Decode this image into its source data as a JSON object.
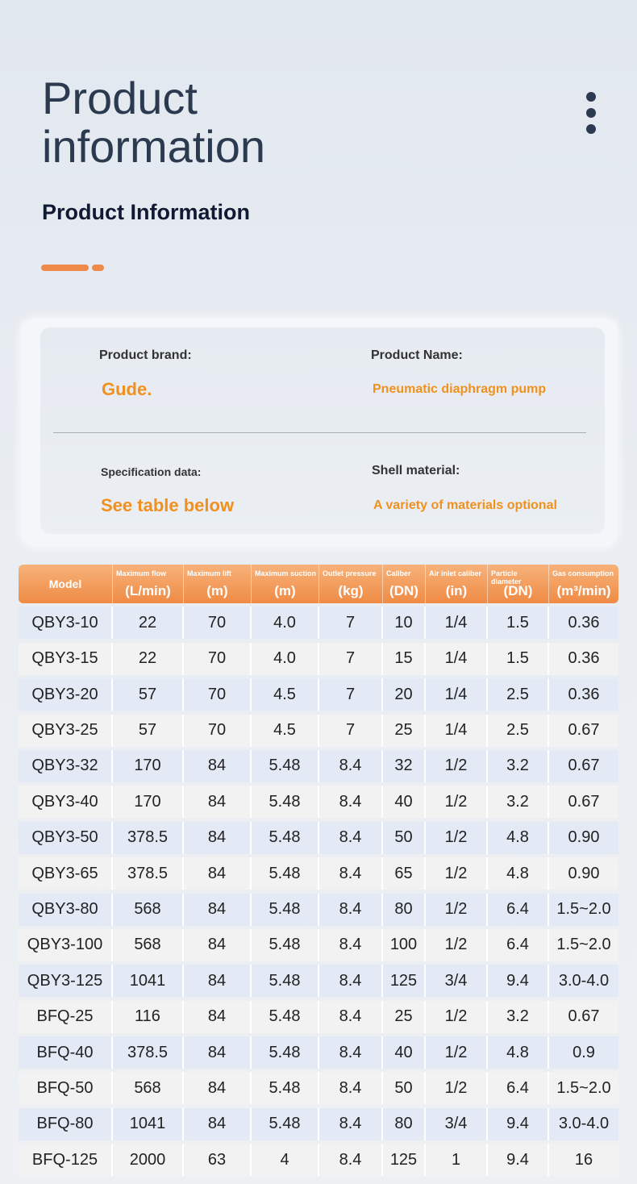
{
  "header": {
    "title_line1": "Product",
    "title_line2": "information",
    "subtitle": "Product Information"
  },
  "info": {
    "brand_label": "Product brand:",
    "brand": "Gude.",
    "name_label": "Product Name:",
    "name": "Pneumatic diaphragm pump",
    "spec_label": "Specification data:",
    "spec": "See table below",
    "shell_label": "Shell material:",
    "shell": "A variety of materials optional"
  },
  "table": {
    "columns": [
      {
        "label": "Model"
      },
      {
        "label": "Maximum flow",
        "unit": "(L/min)"
      },
      {
        "label": "Maximum lift",
        "unit": "(m)"
      },
      {
        "label": "Maximum suction",
        "unit": "(m)"
      },
      {
        "label": "Outlet pressure",
        "unit": "(kg)"
      },
      {
        "label": "Caliber",
        "unit": "(DN)"
      },
      {
        "label": "Air inlet caliber",
        "unit": "(in)"
      },
      {
        "label": "Particle diameter",
        "unit": "(DN)"
      },
      {
        "label": "Gas consumption",
        "unit": "(m³/min)"
      }
    ],
    "rows": [
      [
        "QBY3-10",
        "22",
        "70",
        "4.0",
        "7",
        "10",
        "1/4",
        "1.5",
        "0.36"
      ],
      [
        "QBY3-15",
        "22",
        "70",
        "4.0",
        "7",
        "15",
        "1/4",
        "1.5",
        "0.36"
      ],
      [
        "QBY3-20",
        "57",
        "70",
        "4.5",
        "7",
        "20",
        "1/4",
        "2.5",
        "0.36"
      ],
      [
        "QBY3-25",
        "57",
        "70",
        "4.5",
        "7",
        "25",
        "1/4",
        "2.5",
        "0.67"
      ],
      [
        "QBY3-32",
        "170",
        "84",
        "5.48",
        "8.4",
        "32",
        "1/2",
        "3.2",
        "0.67"
      ],
      [
        "QBY3-40",
        "170",
        "84",
        "5.48",
        "8.4",
        "40",
        "1/2",
        "3.2",
        "0.67"
      ],
      [
        "QBY3-50",
        "378.5",
        "84",
        "5.48",
        "8.4",
        "50",
        "1/2",
        "4.8",
        "0.90"
      ],
      [
        "QBY3-65",
        "378.5",
        "84",
        "5.48",
        "8.4",
        "65",
        "1/2",
        "4.8",
        "0.90"
      ],
      [
        "QBY3-80",
        "568",
        "84",
        "5.48",
        "8.4",
        "80",
        "1/2",
        "6.4",
        "1.5~2.0"
      ],
      [
        "QBY3-100",
        "568",
        "84",
        "5.48",
        "8.4",
        "100",
        "1/2",
        "6.4",
        "1.5~2.0"
      ],
      [
        "QBY3-125",
        "1041",
        "84",
        "5.48",
        "8.4",
        "125",
        "3/4",
        "9.4",
        "3.0-4.0"
      ],
      [
        "BFQ-25",
        "116",
        "84",
        "5.48",
        "8.4",
        "25",
        "1/2",
        "3.2",
        "0.67"
      ],
      [
        "BFQ-40",
        "378.5",
        "84",
        "5.48",
        "8.4",
        "40",
        "1/2",
        "4.8",
        "0.9"
      ],
      [
        "BFQ-50",
        "568",
        "84",
        "5.48",
        "8.4",
        "50",
        "1/2",
        "6.4",
        "1.5~2.0"
      ],
      [
        "BFQ-80",
        "1041",
        "84",
        "5.48",
        "8.4",
        "80",
        "3/4",
        "9.4",
        "3.0-4.0"
      ],
      [
        "BFQ-125",
        "2000",
        "63",
        "4",
        "8.4",
        "125",
        "1",
        "9.4",
        "16"
      ]
    ]
  }
}
